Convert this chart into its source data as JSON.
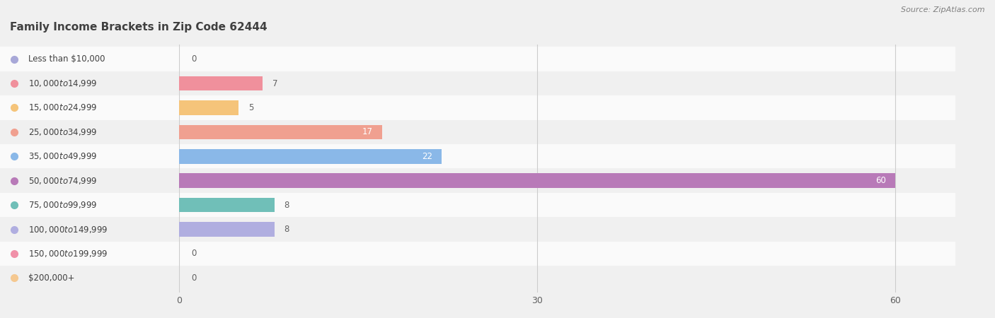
{
  "title": "Family Income Brackets in Zip Code 62444",
  "source": "Source: ZipAtlas.com",
  "categories": [
    "Less than $10,000",
    "$10,000 to $14,999",
    "$15,000 to $24,999",
    "$25,000 to $34,999",
    "$35,000 to $49,999",
    "$50,000 to $74,999",
    "$75,000 to $99,999",
    "$100,000 to $149,999",
    "$150,000 to $199,999",
    "$200,000+"
  ],
  "values": [
    0,
    7,
    5,
    17,
    22,
    60,
    8,
    8,
    0,
    0
  ],
  "bar_colors": [
    "#a8a8d8",
    "#f0909c",
    "#f5c47a",
    "#f0a090",
    "#8ab8e8",
    "#b87ab8",
    "#70bfb8",
    "#b0aee0",
    "#f090a8",
    "#f5c890"
  ],
  "row_colors": [
    "#fafafa",
    "#f0f0f0"
  ],
  "xlim": [
    0,
    65
  ],
  "xticks": [
    0,
    30,
    60
  ],
  "bar_height": 0.6,
  "fig_bg": "#f0f0f0",
  "title_color": "#404040",
  "label_color": "#404040",
  "value_color_inside": "#ffffff",
  "value_color_outside": "#606060",
  "title_fontsize": 11,
  "label_fontsize": 8.5,
  "value_fontsize": 8.5
}
